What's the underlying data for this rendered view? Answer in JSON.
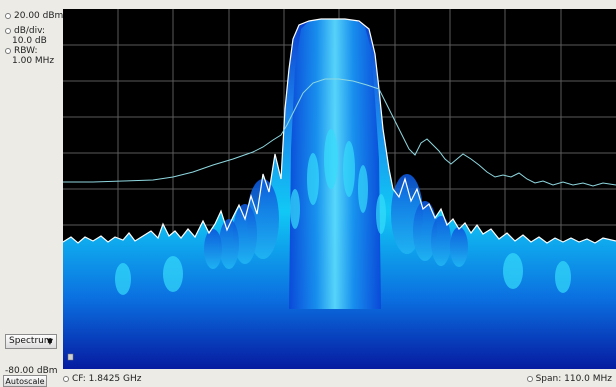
{
  "left_panel": {
    "ref_level": "20.00 dBm",
    "db_div_label": "dB/div:",
    "db_div_value": "10.0 dB",
    "rbw_label": "RBW:",
    "rbw_value": "1.00 MHz",
    "bottom_level": "-80.00 dBm",
    "display_select": "Spectrum",
    "autoscale_label": "Autoscale"
  },
  "bottom_bar": {
    "cf": "CF: 1.8425 GHz",
    "span": "Span: 110.0 MHz"
  },
  "colors": {
    "background": "#000000",
    "grid": "#5a5a5a",
    "persistence_high": "#00e5ff",
    "persistence_mid": "#0a5bd6",
    "persistence_low": "#081a9c",
    "trace_white": "#ffffff",
    "trace_aqua": "#8fd8e0"
  }
}
